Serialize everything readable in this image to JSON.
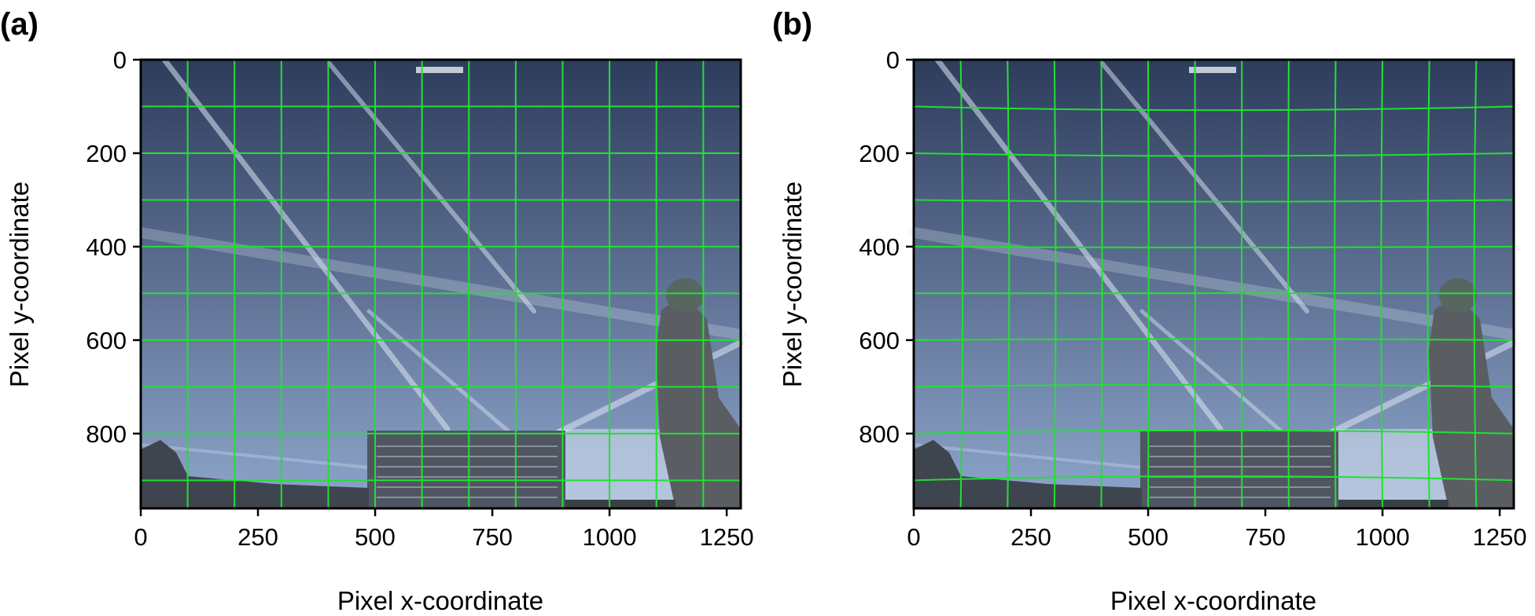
{
  "panels": [
    {
      "label": "(a)",
      "xlabel": "Pixel x-coordinate",
      "ylabel": "Pixel y-coordinate",
      "xticks": [
        0,
        250,
        500,
        750,
        1000,
        1250
      ],
      "yticks": [
        0,
        200,
        400,
        600,
        800
      ],
      "xlim": [
        0,
        1280
      ],
      "ylim": [
        960,
        0
      ],
      "grid_color": "#22e033",
      "grid_style": "straight"
    },
    {
      "label": "(b)",
      "xlabel": "Pixel x-coordinate",
      "ylabel": "Pixel y-coordinate",
      "xticks": [
        0,
        250,
        500,
        750,
        1000,
        1250
      ],
      "yticks": [
        0,
        200,
        400,
        600,
        800
      ],
      "xlim": [
        0,
        1280
      ],
      "ylim": [
        960,
        0
      ],
      "grid_color": "#22e033",
      "grid_style": "distorted"
    }
  ],
  "image": {
    "sky_top": "#2e3c5c",
    "sky_bottom": "#8ea6cc",
    "building_color": "#4f5662"
  }
}
